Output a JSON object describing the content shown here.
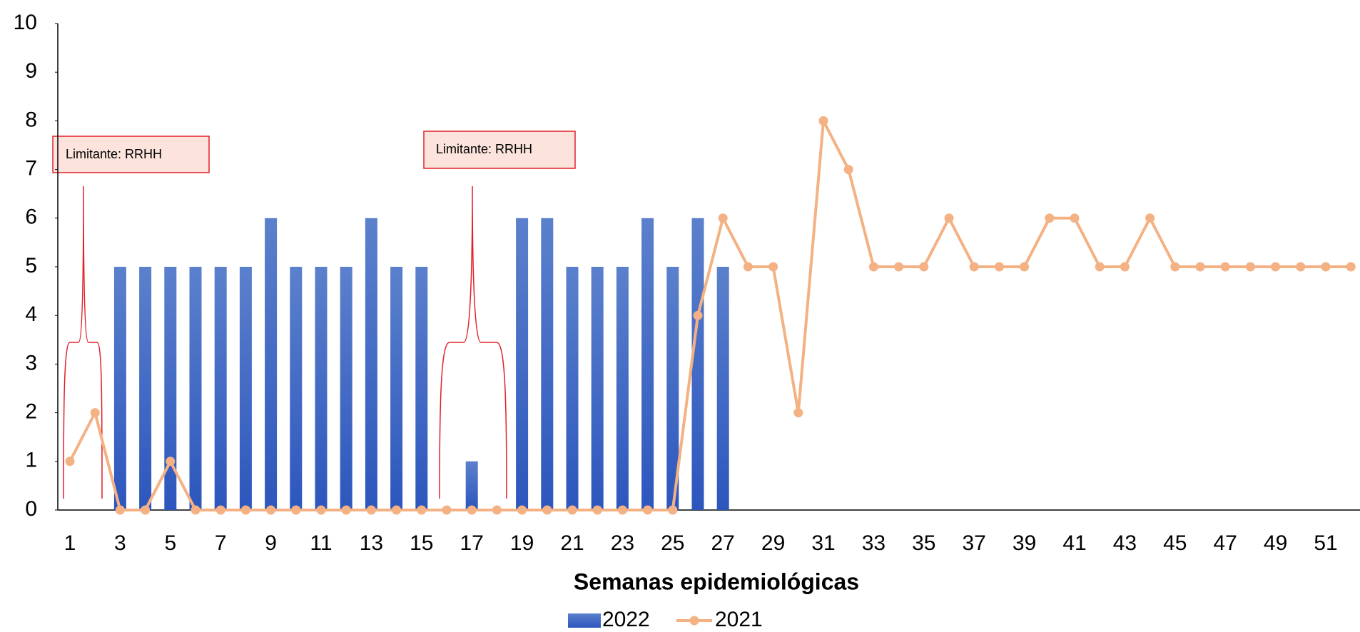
{
  "chart_data": {
    "type": "bar_line",
    "xlabel": "Semanas epidemiológicas",
    "categories": [
      "1",
      null,
      "3",
      null,
      "5",
      null,
      "7",
      null,
      "9",
      null,
      "11",
      null,
      "13",
      null,
      "15",
      null,
      "17",
      null,
      "19",
      null,
      "21",
      null,
      "23",
      null,
      "25",
      null,
      "27",
      null,
      "29",
      null,
      "31",
      null,
      "33",
      null,
      "35",
      null,
      "37",
      null,
      "39",
      null,
      "41",
      null,
      "43",
      null,
      "45",
      null,
      "47",
      null,
      "49",
      null,
      "51",
      null
    ],
    "series": [
      {
        "name": "2022",
        "type": "bar",
        "color": "#4472c4",
        "values": [
          null,
          null,
          5,
          5,
          5,
          5,
          5,
          5,
          6,
          5,
          5,
          5,
          6,
          5,
          5,
          null,
          1,
          null,
          6,
          6,
          5,
          5,
          5,
          6,
          5,
          6,
          5,
          null,
          null,
          null,
          null,
          null,
          null,
          null,
          null,
          null,
          null,
          null,
          null,
          null,
          null,
          null,
          null,
          null,
          null,
          null,
          null,
          null,
          null,
          null,
          null,
          null
        ]
      },
      {
        "name": "2021",
        "type": "line",
        "color": "#f4b183",
        "values": [
          1,
          2,
          0,
          0,
          1,
          0,
          0,
          0,
          0,
          0,
          0,
          0,
          0,
          0,
          0,
          0,
          0,
          0,
          0,
          0,
          0,
          0,
          0,
          0,
          0,
          4,
          6,
          5,
          5,
          2,
          8,
          7,
          5,
          5,
          5,
          6,
          5,
          5,
          5,
          6,
          6,
          5,
          5,
          6,
          5,
          5,
          5,
          5,
          5,
          5,
          5,
          5
        ]
      }
    ],
    "ylim": [
      0,
      10
    ],
    "yticks": [
      0,
      1,
      2,
      3,
      4,
      5,
      6,
      7,
      8,
      9,
      10
    ],
    "annotations": [
      "Limitante: RRHH",
      "Limitante: RRHH"
    ]
  }
}
